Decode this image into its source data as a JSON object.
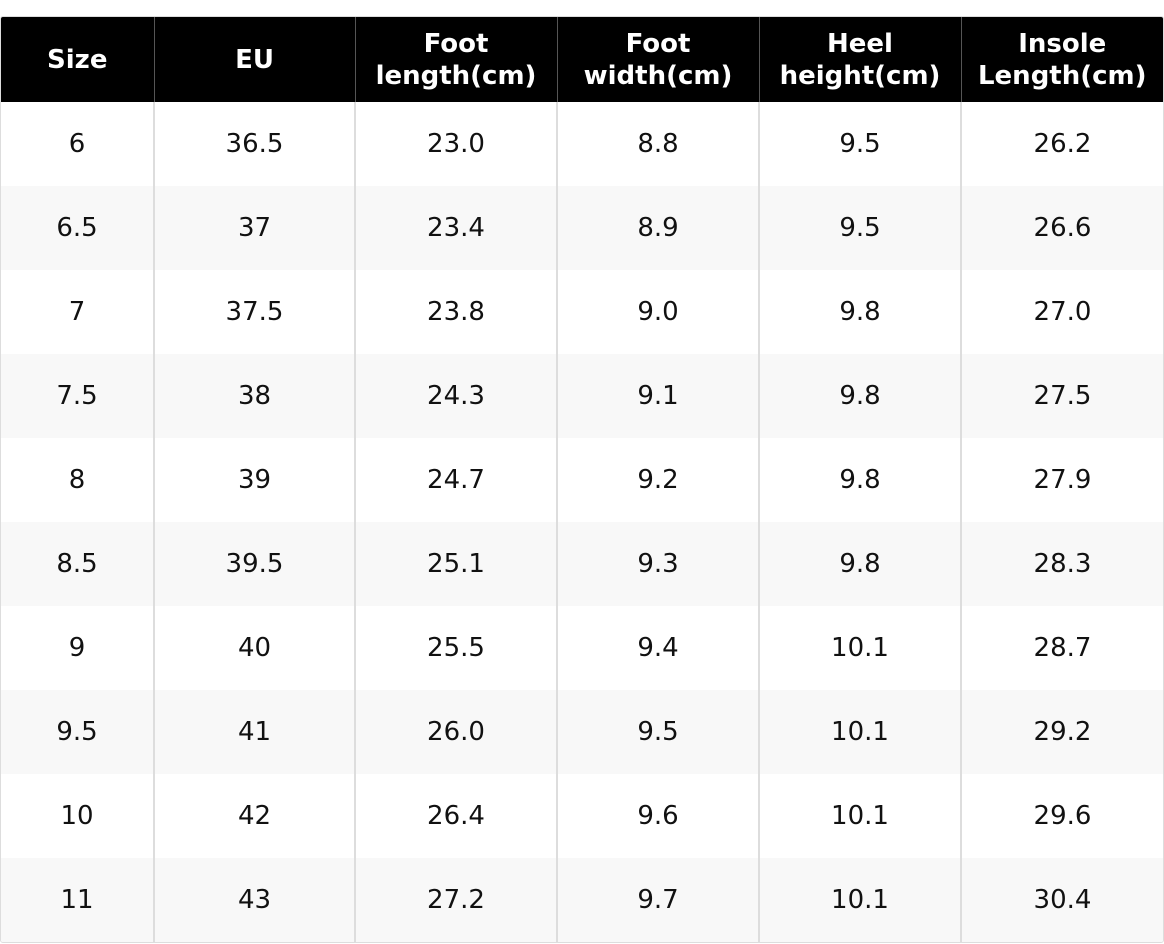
{
  "table": {
    "header": [
      "Size",
      "EU",
      "Foot length(cm)",
      "Foot width(cm)",
      "Heel height(cm)",
      "Insole Length(cm)"
    ],
    "rows": [
      [
        "6",
        "36.5",
        "23.0",
        "8.8",
        "9.5",
        "26.2"
      ],
      [
        "6.5",
        "37",
        "23.4",
        "8.9",
        "9.5",
        "26.6"
      ],
      [
        "7",
        "37.5",
        "23.8",
        "9.0",
        "9.8",
        "27.0"
      ],
      [
        "7.5",
        "38",
        "24.3",
        "9.1",
        "9.8",
        "27.5"
      ],
      [
        "8",
        "39",
        "24.7",
        "9.2",
        "9.8",
        "27.9"
      ],
      [
        "8.5",
        "39.5",
        "25.1",
        "9.3",
        "9.8",
        "28.3"
      ],
      [
        "9",
        "40",
        "25.5",
        "9.4",
        "10.1",
        "28.7"
      ],
      [
        "9.5",
        "41",
        "26.0",
        "9.5",
        "10.1",
        "29.2"
      ],
      [
        "10",
        "42",
        "26.4",
        "9.6",
        "10.1",
        "29.6"
      ],
      [
        "11",
        "43",
        "27.2",
        "9.7",
        "10.1",
        "30.4"
      ]
    ]
  }
}
